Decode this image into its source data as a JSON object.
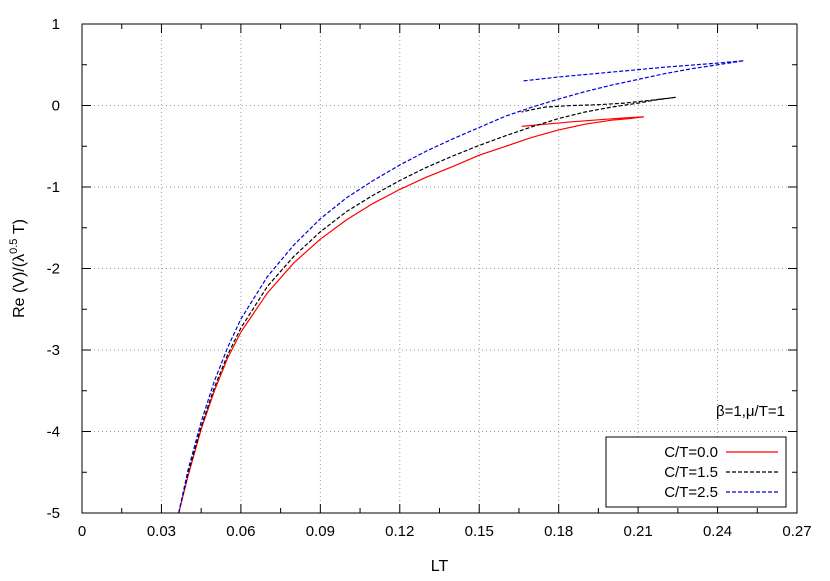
{
  "chart_data": {
    "type": "line",
    "title": "",
    "xlabel": "LT",
    "ylabel_parts": {
      "prefix": "Re (V)/(λ",
      "superscript": "0.5",
      "suffix": " T)"
    },
    "xlim": [
      0,
      0.27
    ],
    "ylim": [
      -5,
      1
    ],
    "x_ticks": [
      "0",
      "0.03",
      "0.06",
      "0.09",
      "0.12",
      "0.15",
      "0.18",
      "0.21",
      "0.24",
      "0.27"
    ],
    "y_ticks": [
      "-5",
      "-4",
      "-3",
      "-2",
      "-1",
      "0",
      "1"
    ],
    "grid": true,
    "legend_position": "bottom-right",
    "annotation": "β=1,μ/T=1",
    "series": [
      {
        "name": "C/T=0.0",
        "color": "#ff0000",
        "dash": "solid",
        "points": [
          [
            0.0365,
            -5.0
          ],
          [
            0.04,
            -4.55
          ],
          [
            0.045,
            -3.97
          ],
          [
            0.05,
            -3.5
          ],
          [
            0.055,
            -3.1
          ],
          [
            0.06,
            -2.78
          ],
          [
            0.07,
            -2.3
          ],
          [
            0.08,
            -1.93
          ],
          [
            0.09,
            -1.64
          ],
          [
            0.1,
            -1.4
          ],
          [
            0.11,
            -1.2
          ],
          [
            0.12,
            -1.03
          ],
          [
            0.13,
            -0.88
          ],
          [
            0.14,
            -0.75
          ],
          [
            0.15,
            -0.61
          ],
          [
            0.16,
            -0.5
          ],
          [
            0.17,
            -0.39
          ],
          [
            0.18,
            -0.3
          ],
          [
            0.19,
            -0.23
          ],
          [
            0.2,
            -0.18
          ],
          [
            0.207,
            -0.16
          ],
          [
            0.212,
            -0.14
          ],
          [
            0.206,
            -0.15
          ],
          [
            0.195,
            -0.175
          ],
          [
            0.185,
            -0.2
          ],
          [
            0.175,
            -0.23
          ],
          [
            0.168,
            -0.25
          ],
          [
            0.166,
            -0.255
          ]
        ]
      },
      {
        "name": "C/T=1.5",
        "color": "#000000",
        "dash": "dashed",
        "points": [
          [
            0.0365,
            -5.0
          ],
          [
            0.04,
            -4.52
          ],
          [
            0.045,
            -3.94
          ],
          [
            0.05,
            -3.46
          ],
          [
            0.055,
            -3.06
          ],
          [
            0.06,
            -2.73
          ],
          [
            0.07,
            -2.22
          ],
          [
            0.08,
            -1.85
          ],
          [
            0.09,
            -1.55
          ],
          [
            0.1,
            -1.3
          ],
          [
            0.11,
            -1.1
          ],
          [
            0.12,
            -0.92
          ],
          [
            0.13,
            -0.76
          ],
          [
            0.14,
            -0.62
          ],
          [
            0.15,
            -0.49
          ],
          [
            0.16,
            -0.37
          ],
          [
            0.17,
            -0.26
          ],
          [
            0.18,
            -0.16
          ],
          [
            0.19,
            -0.08
          ],
          [
            0.2,
            -0.02
          ],
          [
            0.21,
            0.03
          ],
          [
            0.217,
            0.07
          ],
          [
            0.224,
            0.1
          ],
          [
            0.215,
            0.065
          ],
          [
            0.205,
            0.03
          ],
          [
            0.195,
            0.01
          ],
          [
            0.185,
            0.0
          ],
          [
            0.175,
            -0.02
          ],
          [
            0.17,
            -0.05
          ],
          [
            0.166,
            -0.08
          ]
        ]
      },
      {
        "name": "C/T=2.5",
        "color": "#0000dd",
        "dash": "dashed",
        "points": [
          [
            0.0365,
            -5.0
          ],
          [
            0.04,
            -4.48
          ],
          [
            0.045,
            -3.88
          ],
          [
            0.05,
            -3.38
          ],
          [
            0.055,
            -2.97
          ],
          [
            0.06,
            -2.62
          ],
          [
            0.07,
            -2.1
          ],
          [
            0.08,
            -1.71
          ],
          [
            0.09,
            -1.39
          ],
          [
            0.1,
            -1.13
          ],
          [
            0.11,
            -0.92
          ],
          [
            0.12,
            -0.73
          ],
          [
            0.13,
            -0.56
          ],
          [
            0.14,
            -0.41
          ],
          [
            0.15,
            -0.27
          ],
          [
            0.16,
            -0.13
          ],
          [
            0.17,
            -0.02
          ],
          [
            0.18,
            0.08
          ],
          [
            0.19,
            0.17
          ],
          [
            0.2,
            0.25
          ],
          [
            0.21,
            0.32
          ],
          [
            0.22,
            0.39
          ],
          [
            0.23,
            0.45
          ],
          [
            0.24,
            0.5
          ],
          [
            0.25,
            0.55
          ],
          [
            0.24,
            0.52
          ],
          [
            0.22,
            0.47
          ],
          [
            0.2,
            0.41
          ],
          [
            0.18,
            0.35
          ],
          [
            0.166,
            0.3
          ]
        ]
      }
    ]
  }
}
